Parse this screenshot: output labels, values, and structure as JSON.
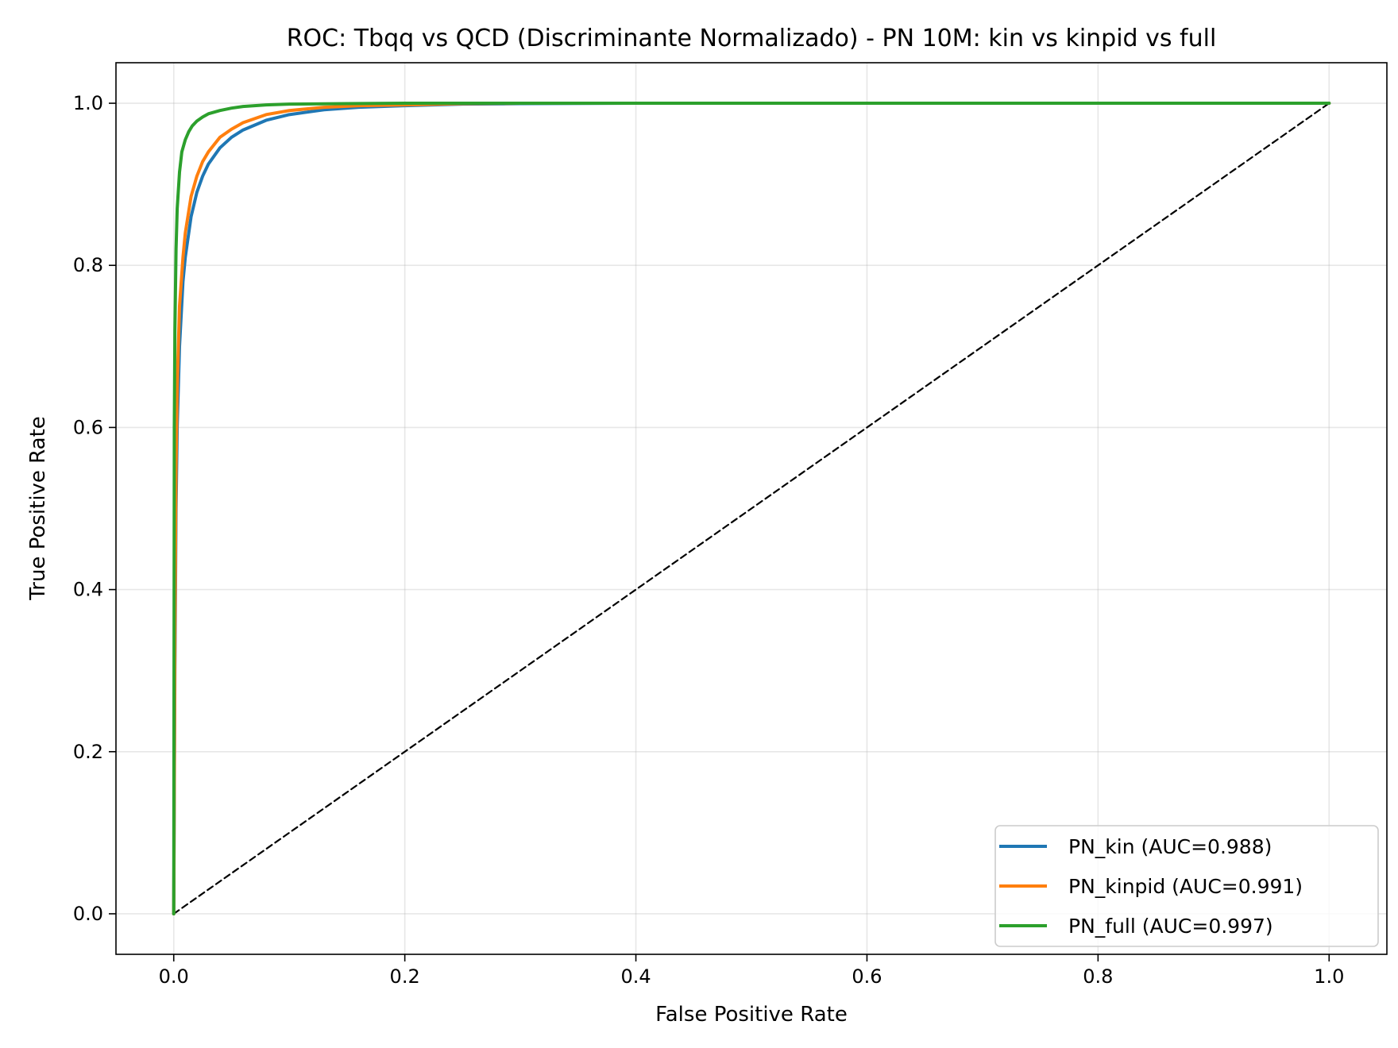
{
  "chart_data": {
    "type": "line",
    "title": "ROC: Tbqq vs QCD (Discriminante Normalizado) - PN 10M: kin vs kinpid vs full",
    "xlabel": "False Positive Rate",
    "ylabel": "True Positive Rate",
    "xlim": [
      -0.05,
      1.05
    ],
    "ylim": [
      -0.05,
      1.05
    ],
    "xticks": [
      0.0,
      0.2,
      0.4,
      0.6,
      0.8,
      1.0
    ],
    "yticks": [
      0.0,
      0.2,
      0.4,
      0.6,
      0.8,
      1.0
    ],
    "x_tick_labels": [
      "0.0",
      "0.2",
      "0.4",
      "0.6",
      "0.8",
      "1.0"
    ],
    "y_tick_labels": [
      "0.0",
      "0.2",
      "0.4",
      "0.6",
      "0.8",
      "1.0"
    ],
    "grid": true,
    "legend_position": "lower-right",
    "series": [
      {
        "name": "PN_kin (AUC=0.988)",
        "color": "#1f77b4",
        "x": [
          0,
          0.001,
          0.002,
          0.003,
          0.005,
          0.008,
          0.01,
          0.015,
          0.02,
          0.025,
          0.03,
          0.04,
          0.05,
          0.06,
          0.08,
          0.1,
          0.13,
          0.16,
          0.2,
          0.25,
          0.3,
          0.4,
          0.6,
          0.8,
          1.0
        ],
        "y": [
          0,
          0.3,
          0.5,
          0.6,
          0.7,
          0.78,
          0.81,
          0.86,
          0.89,
          0.91,
          0.925,
          0.945,
          0.958,
          0.967,
          0.979,
          0.986,
          0.992,
          0.995,
          0.997,
          0.999,
          0.9995,
          1.0,
          1.0,
          1.0,
          1.0
        ]
      },
      {
        "name": "PN_kinpid (AUC=0.991)",
        "color": "#ff7f0e",
        "x": [
          0,
          0.001,
          0.002,
          0.003,
          0.005,
          0.008,
          0.01,
          0.015,
          0.02,
          0.025,
          0.03,
          0.04,
          0.05,
          0.06,
          0.08,
          0.1,
          0.13,
          0.16,
          0.2,
          0.25,
          0.3,
          0.4,
          0.6,
          0.8,
          1.0
        ],
        "y": [
          0,
          0.35,
          0.55,
          0.65,
          0.75,
          0.81,
          0.84,
          0.885,
          0.91,
          0.928,
          0.94,
          0.958,
          0.968,
          0.976,
          0.986,
          0.991,
          0.995,
          0.997,
          0.998,
          0.9995,
          1.0,
          1.0,
          1.0,
          1.0,
          1.0
        ]
      },
      {
        "name": "PN_full (AUC=0.997)",
        "color": "#2ca02c",
        "x": [
          0,
          0.0005,
          0.001,
          0.002,
          0.003,
          0.005,
          0.007,
          0.01,
          0.013,
          0.016,
          0.02,
          0.025,
          0.03,
          0.04,
          0.05,
          0.06,
          0.08,
          0.1,
          0.15,
          0.2,
          0.3,
          0.5,
          1.0
        ],
        "y": [
          0,
          0.6,
          0.72,
          0.82,
          0.87,
          0.915,
          0.94,
          0.955,
          0.965,
          0.972,
          0.978,
          0.983,
          0.987,
          0.991,
          0.994,
          0.996,
          0.998,
          0.999,
          0.9995,
          1.0,
          1.0,
          1.0,
          1.0
        ]
      },
      {
        "name": "",
        "color": "#000000",
        "dashed": true,
        "x": [
          0,
          1
        ],
        "y": [
          0,
          1
        ]
      }
    ]
  }
}
